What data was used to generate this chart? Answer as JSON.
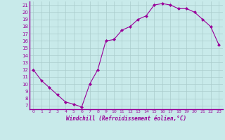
{
  "x": [
    0,
    1,
    2,
    3,
    4,
    5,
    6,
    7,
    8,
    9,
    10,
    11,
    12,
    13,
    14,
    15,
    16,
    17,
    18,
    19,
    20,
    21,
    22,
    23
  ],
  "y": [
    12,
    10.5,
    9.5,
    8.5,
    7.5,
    7.2,
    6.8,
    10.0,
    12.0,
    16.0,
    16.2,
    17.5,
    18.0,
    19.0,
    19.5,
    21.0,
    21.2,
    21.0,
    20.5,
    20.5,
    20.0,
    19.0,
    18.0,
    15.5
  ],
  "line_color": "#990099",
  "marker": "D",
  "marker_size": 2,
  "bg_color": "#c8eaea",
  "grid_color": "#aacccc",
  "xlabel": "Windchill (Refroidissement éolien,°C)",
  "xlabel_color": "#990099",
  "tick_color": "#990099",
  "axis_color": "#990099",
  "ylim": [
    6.5,
    21.5
  ],
  "xlim": [
    -0.5,
    23.5
  ],
  "yticks": [
    7,
    8,
    9,
    10,
    11,
    12,
    13,
    14,
    15,
    16,
    17,
    18,
    19,
    20,
    21
  ],
  "xticks": [
    0,
    1,
    2,
    3,
    4,
    5,
    6,
    7,
    8,
    9,
    10,
    11,
    12,
    13,
    14,
    15,
    16,
    17,
    18,
    19,
    20,
    21,
    22,
    23
  ]
}
